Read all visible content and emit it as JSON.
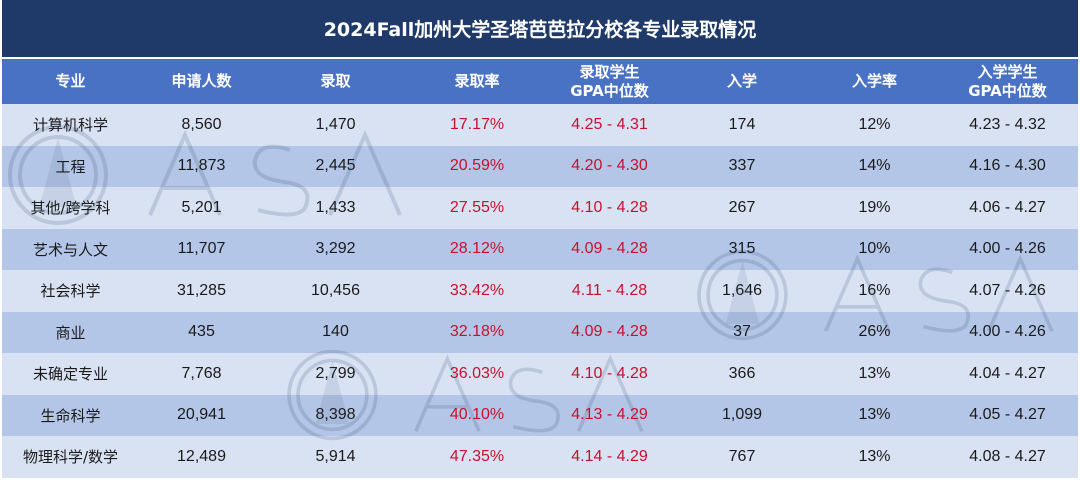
{
  "chart_data": {
    "type": "table",
    "title": "2024Fall加州大学圣塔芭芭拉分校各专业录取情况",
    "columns": [
      "专业",
      "申请人数",
      "录取",
      "录取率",
      "录取学生\nGPA中位数",
      "入学",
      "入学率",
      "入学学生\nGPA中位数"
    ],
    "header_lines": [
      [
        "专业"
      ],
      [
        "申请人数"
      ],
      [
        "录取"
      ],
      [
        "录取率"
      ],
      [
        "录取学生",
        "GPA中位数"
      ],
      [
        "入学"
      ],
      [
        "入学率"
      ],
      [
        "入学学生",
        "GPA中位数"
      ]
    ],
    "rows": [
      [
        "计算机科学",
        "8,560",
        "1,470",
        "17.17%",
        "4.25 - 4.31",
        "174",
        "12%",
        "4.23 - 4.32"
      ],
      [
        "工程",
        "11,873",
        "2,445",
        "20.59%",
        "4.20 - 4.30",
        "337",
        "14%",
        "4.16 - 4.30"
      ],
      [
        "其他/跨学科",
        "5,201",
        "1,433",
        "27.55%",
        "4.10 - 4.28",
        "267",
        "19%",
        "4.06 - 4.27"
      ],
      [
        "艺术与人文",
        "11,707",
        "3,292",
        "28.12%",
        "4.09 - 4.28",
        "315",
        "10%",
        "4.00 - 4.26"
      ],
      [
        "社会科学",
        "31,285",
        "10,456",
        "33.42%",
        "4.11 - 4.28",
        "1,646",
        "16%",
        "4.07 - 4.26"
      ],
      [
        "商业",
        "435",
        "140",
        "32.18%",
        "4.09 - 4.28",
        "37",
        "26%",
        "4.00 - 4.26"
      ],
      [
        "未确定专业",
        "7,768",
        "2,799",
        "36.03%",
        "4.10 - 4.28",
        "366",
        "13%",
        "4.04 - 4.27"
      ],
      [
        "生命科学",
        "20,941",
        "8,398",
        "40.10%",
        "4.13 - 4.29",
        "1,099",
        "13%",
        "4.05 - 4.27"
      ],
      [
        "物理科学/数学",
        "12,489",
        "5,914",
        "47.35%",
        "4.14 - 4.29",
        "767",
        "13%",
        "4.08 - 4.27"
      ]
    ],
    "highlight_columns": [
      3,
      4
    ]
  },
  "watermark_text": "ASAA",
  "colors": {
    "title_bg": "#1f3a68",
    "header_bg": "#4a72c4",
    "row_light": "#d9e2f3",
    "row_dark": "#b4c6e7",
    "highlight_text": "#c8102e",
    "body_text": "#1a1a1a"
  }
}
